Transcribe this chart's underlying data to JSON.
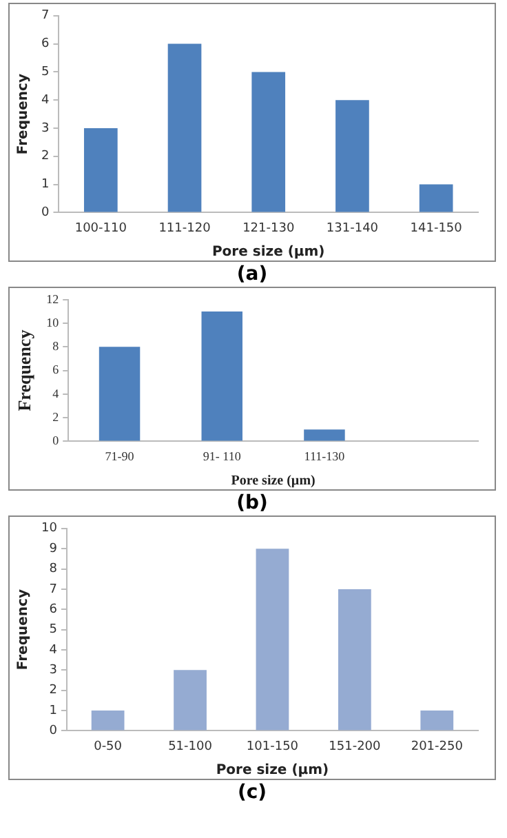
{
  "chart_data": [
    {
      "type": "bar",
      "categories": [
        "100-110",
        "111-120",
        "121-130",
        "131-140",
        "141-150"
      ],
      "values": [
        3,
        6,
        5,
        4,
        1
      ],
      "color": "#4f81bd",
      "xlabel": "Pore size (µm)",
      "ylabel": "Frequency",
      "ylim": [
        0,
        7
      ],
      "yticks": [
        0,
        1,
        2,
        3,
        4,
        5,
        6,
        7
      ],
      "grid": false,
      "legend": false,
      "annotations": [
        "(a)"
      ]
    },
    {
      "type": "bar",
      "categories": [
        "71-90",
        "91- 110",
        "111-130",
        null
      ],
      "values": [
        8,
        11,
        1,
        null
      ],
      "color": "#4f81bd",
      "xlabel": "Pore size (µm)",
      "ylabel": "Frequency",
      "ylim": [
        0,
        12
      ],
      "yticks": [
        0,
        2,
        4,
        6,
        8,
        10,
        12
      ],
      "grid": false,
      "legend": false,
      "annotations": [
        "(b)"
      ]
    },
    {
      "type": "bar",
      "categories": [
        "0-50",
        "51-100",
        "101-150",
        "151-200",
        "201-250"
      ],
      "values": [
        1,
        3,
        9,
        7,
        1
      ],
      "color": "#95abd2",
      "xlabel": "Pore size (µm)",
      "ylabel": "Frequency",
      "ylim": [
        0,
        10
      ],
      "yticks": [
        0,
        1,
        2,
        3,
        4,
        5,
        6,
        7,
        8,
        9,
        10
      ],
      "grid": false,
      "legend": false,
      "annotations": [
        "(c)"
      ]
    }
  ]
}
